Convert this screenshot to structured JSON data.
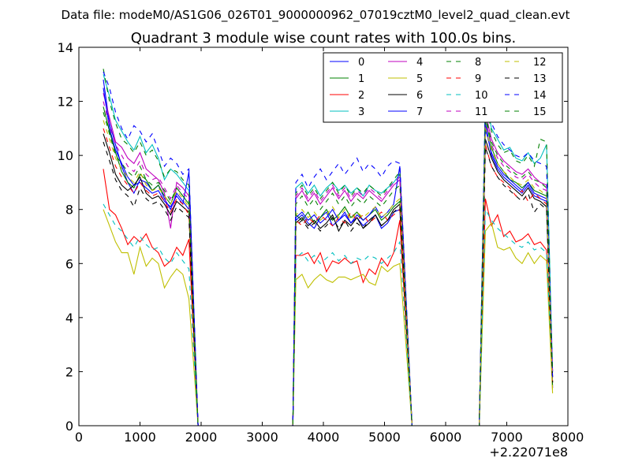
{
  "chart_data": {
    "type": "line",
    "suptitle": "Data file: modeM0/AS1G06_026T01_9000000962_07019cztM0_level2_quad_clean.evt",
    "title": "Quadrant 3 module wise count rates with 100.0s bins.",
    "xlabel": "",
    "ylabel": "",
    "xlim": [
      0,
      8000
    ],
    "ylim": [
      0,
      14
    ],
    "x_offset_label": "+2.22071e8",
    "x_ticks": [
      0,
      1000,
      2000,
      3000,
      4000,
      5000,
      6000,
      7000,
      8000
    ],
    "x_tick_labels": [
      "0",
      "1000",
      "2000",
      "3000",
      "4000",
      "5000",
      "6000",
      "7000",
      "8000"
    ],
    "y_ticks": [
      0,
      2,
      4,
      6,
      8,
      10,
      12,
      14
    ],
    "y_tick_labels": [
      "0",
      "2",
      "4",
      "6",
      "8",
      "10",
      "12",
      "14"
    ],
    "legend_position": "top-right",
    "legend_columns": 4,
    "grid": false,
    "segments": [
      {
        "start": 400,
        "end": 1800,
        "step": 100,
        "drop_end": 1950
      },
      {
        "start": 3550,
        "end": 5350,
        "step": 100,
        "drop_end": 5450
      },
      {
        "start": 6650,
        "end": 7650,
        "step": 100,
        "drop_end": 7750
      }
    ],
    "zero_gaps": [
      [
        1950,
        3500
      ],
      [
        5450,
        6550
      ]
    ],
    "gap_segment_starts": [
      3500,
      6550
    ],
    "series": [
      {
        "name": "0",
        "color": "#0000ff",
        "dash": "solid",
        "seg1": [
          12.8,
          11.2,
          10.4,
          9.6,
          9.0,
          8.6,
          9.1,
          9.0,
          8.7,
          8.9,
          8.4,
          8.0,
          8.6,
          8.3,
          8.0
        ],
        "seg2": [
          7.6,
          7.8,
          7.5,
          7.3,
          7.7,
          7.9,
          7.4,
          7.6,
          7.8,
          7.5,
          7.7,
          7.4,
          7.6,
          7.8,
          7.3,
          7.5,
          7.9,
          8.0
        ],
        "seg3": [
          11.2,
          10.0,
          9.5,
          9.2,
          9.0,
          8.8,
          8.6,
          8.9,
          8.5,
          8.4,
          8.3
        ]
      },
      {
        "name": "1",
        "color": "#008000",
        "dash": "solid",
        "seg1": [
          11.8,
          10.9,
          10.1,
          9.4,
          9.0,
          8.8,
          9.3,
          9.1,
          8.7,
          8.9,
          8.5,
          8.2,
          8.8,
          8.5,
          8.2
        ],
        "seg2": [
          7.8,
          7.6,
          7.9,
          7.5,
          7.7,
          8.0,
          7.6,
          7.8,
          8.1,
          7.7,
          7.9,
          7.6,
          7.8,
          8.0,
          7.6,
          7.8,
          8.1,
          8.3
        ],
        "seg3": [
          11.4,
          10.3,
          9.7,
          9.4,
          9.1,
          9.0,
          8.8,
          9.0,
          8.7,
          8.6,
          8.5
        ]
      },
      {
        "name": "2",
        "color": "#ff0000",
        "dash": "solid",
        "seg1": [
          9.5,
          8.0,
          7.8,
          7.3,
          6.7,
          7.0,
          6.8,
          7.1,
          6.6,
          6.4,
          5.9,
          6.1,
          6.6,
          6.3,
          6.9
        ],
        "seg2": [
          6.3,
          6.3,
          6.4,
          6.0,
          6.4,
          5.7,
          6.1,
          6.0,
          6.2,
          6.0,
          6.1,
          5.3,
          5.8,
          5.6,
          6.2,
          5.9,
          6.4,
          7.6
        ],
        "seg3": [
          8.4,
          7.4,
          7.8,
          7.0,
          7.2,
          6.8,
          6.9,
          7.1,
          6.7,
          6.8,
          6.5
        ]
      },
      {
        "name": "3",
        "color": "#00bfbf",
        "dash": "solid",
        "seg1": [
          13.0,
          12.2,
          11.3,
          10.9,
          10.5,
          10.2,
          10.7,
          10.1,
          10.4,
          9.9,
          9.1,
          9.5,
          9.3,
          9.0,
          8.7
        ],
        "seg2": [
          8.8,
          9.0,
          8.6,
          8.9,
          8.5,
          8.8,
          9.0,
          8.7,
          8.9,
          8.6,
          8.8,
          8.5,
          8.9,
          8.7,
          8.6,
          8.8,
          9.0,
          9.3
        ],
        "seg3": [
          12.2,
          11.0,
          10.6,
          10.2,
          10.3,
          9.9,
          9.8,
          10.1,
          9.7,
          9.9,
          10.4
        ]
      },
      {
        "name": "4",
        "color": "#bf00bf",
        "dash": "solid",
        "seg1": [
          12.3,
          11.4,
          10.5,
          10.3,
          9.9,
          9.7,
          10.1,
          9.5,
          9.3,
          9.1,
          8.6,
          7.3,
          9.0,
          8.8,
          8.5
        ],
        "seg2": [
          8.4,
          8.7,
          8.3,
          8.6,
          8.2,
          8.5,
          8.8,
          8.4,
          8.7,
          8.3,
          8.6,
          8.4,
          8.7,
          8.5,
          8.3,
          8.6,
          8.9,
          9.1
        ],
        "seg3": [
          11.6,
          10.6,
          10.1,
          9.8,
          9.6,
          9.4,
          9.3,
          9.5,
          9.2,
          9.0,
          8.9
        ]
      },
      {
        "name": "5",
        "color": "#bfbf00",
        "dash": "solid",
        "seg1": [
          8.0,
          7.4,
          6.8,
          6.4,
          6.4,
          5.6,
          6.6,
          5.9,
          6.2,
          6.0,
          5.1,
          5.5,
          5.8,
          5.6,
          4.7
        ],
        "seg2": [
          5.4,
          5.6,
          5.1,
          5.4,
          5.6,
          5.4,
          5.3,
          5.5,
          5.5,
          5.4,
          5.5,
          5.6,
          5.3,
          5.2,
          5.9,
          5.7,
          5.9,
          6.0
        ],
        "seg3": [
          7.2,
          7.5,
          6.6,
          6.5,
          6.6,
          6.2,
          6.0,
          6.4,
          6.0,
          6.3,
          6.1
        ]
      },
      {
        "name": "6",
        "color": "#000000",
        "dash": "solid",
        "seg1": [
          10.8,
          10.1,
          9.3,
          8.9,
          8.7,
          8.9,
          9.2,
          8.6,
          8.4,
          8.5,
          8.2,
          7.8,
          8.3,
          8.1,
          7.9
        ],
        "seg2": [
          7.5,
          7.7,
          7.4,
          7.6,
          7.3,
          7.5,
          7.8,
          7.2,
          7.6,
          7.4,
          7.7,
          7.3,
          7.5,
          7.8,
          7.4,
          7.6,
          8.0,
          8.2
        ],
        "seg3": [
          10.6,
          9.9,
          9.4,
          9.1,
          8.9,
          8.7,
          8.5,
          8.8,
          8.4,
          8.3,
          8.1
        ]
      },
      {
        "name": "7",
        "color": "#0000ff",
        "dash": "solid",
        "seg1": [
          12.5,
          11.0,
          10.2,
          9.7,
          9.2,
          8.9,
          9.0,
          8.8,
          8.6,
          8.7,
          8.3,
          8.1,
          8.5,
          8.2,
          9.4
        ],
        "seg2": [
          7.7,
          7.9,
          7.6,
          7.8,
          7.5,
          7.7,
          8.0,
          7.6,
          7.9,
          7.5,
          7.8,
          7.6,
          7.8,
          8.1,
          7.7,
          7.9,
          8.2,
          9.6
        ],
        "seg3": [
          11.0,
          10.1,
          9.6,
          9.3,
          9.1,
          8.9,
          8.7,
          9.0,
          8.6,
          8.5,
          8.4
        ]
      },
      {
        "name": "8",
        "color": "#008000",
        "dash": "dashed",
        "seg1": [
          13.2,
          12.0,
          11.2,
          10.6,
          10.4,
          10.1,
          10.5,
          10.0,
          10.2,
          9.8,
          9.2,
          9.5,
          9.4,
          9.1,
          8.9
        ],
        "seg2": [
          8.6,
          8.9,
          8.5,
          8.8,
          8.4,
          8.7,
          9.0,
          8.6,
          8.9,
          8.5,
          8.8,
          8.6,
          8.9,
          8.7,
          8.5,
          8.8,
          9.1,
          9.4
        ],
        "seg3": [
          12.0,
          10.9,
          10.4,
          10.1,
          10.2,
          9.8,
          9.7,
          10.0,
          9.6,
          10.6,
          10.5
        ]
      },
      {
        "name": "9",
        "color": "#ff0000",
        "dash": "dashed",
        "seg1": [
          11.0,
          10.3,
          9.6,
          9.2,
          8.9,
          8.6,
          9.0,
          8.7,
          8.5,
          8.6,
          8.3,
          7.9,
          8.4,
          8.2,
          7.8
        ],
        "seg2": [
          7.6,
          7.4,
          7.7,
          7.5,
          7.8,
          7.6,
          7.4,
          7.7,
          7.5,
          7.9,
          7.6,
          7.8,
          7.5,
          7.7,
          7.9,
          7.6,
          7.8,
          8.0
        ],
        "seg3": [
          10.4,
          9.6,
          9.2,
          9.0,
          8.8,
          8.5,
          8.7,
          8.3,
          8.6,
          8.4,
          8.2
        ]
      },
      {
        "name": "10",
        "color": "#00bfbf",
        "dash": "dashed",
        "seg1": [
          8.2,
          7.8,
          7.4,
          7.2,
          6.9,
          6.6,
          7.0,
          6.7,
          6.5,
          6.6,
          6.2,
          6.0,
          6.4,
          6.1,
          5.8
        ],
        "seg2": [
          6.2,
          6.4,
          6.1,
          6.3,
          6.0,
          6.2,
          6.4,
          6.1,
          6.3,
          6.0,
          6.2,
          6.1,
          6.3,
          6.2,
          6.0,
          6.2,
          6.4,
          6.8
        ],
        "seg3": [
          8.0,
          7.6,
          7.3,
          7.1,
          6.9,
          6.7,
          6.6,
          6.8,
          6.5,
          6.6,
          6.4
        ]
      },
      {
        "name": "11",
        "color": "#bf00bf",
        "dash": "dashed",
        "seg1": [
          12.0,
          11.1,
          10.4,
          10.0,
          9.6,
          9.4,
          9.8,
          9.3,
          9.1,
          9.2,
          8.8,
          8.4,
          8.9,
          8.6,
          8.4
        ],
        "seg2": [
          8.5,
          8.8,
          8.4,
          8.7,
          8.3,
          8.6,
          8.9,
          8.5,
          8.8,
          8.4,
          8.7,
          8.5,
          8.8,
          8.6,
          8.4,
          8.7,
          9.0,
          9.2
        ],
        "seg3": [
          11.3,
          10.4,
          9.9,
          9.6,
          9.4,
          9.2,
          9.1,
          9.3,
          9.0,
          8.8,
          8.7
        ]
      },
      {
        "name": "12",
        "color": "#bfbf00",
        "dash": "dashed",
        "seg1": [
          11.3,
          10.6,
          9.9,
          9.5,
          9.2,
          9.0,
          9.4,
          8.9,
          8.7,
          8.8,
          8.5,
          8.2,
          8.7,
          8.4,
          8.1
        ],
        "seg2": [
          7.8,
          8.0,
          7.7,
          7.9,
          7.6,
          7.8,
          8.1,
          7.7,
          8.0,
          7.6,
          7.9,
          7.7,
          7.9,
          8.1,
          7.7,
          7.9,
          8.2,
          8.4
        ],
        "seg3": [
          11.0,
          10.2,
          9.7,
          9.4,
          9.2,
          9.0,
          8.9,
          9.1,
          8.8,
          8.7,
          8.5
        ]
      },
      {
        "name": "13",
        "color": "#000000",
        "dash": "dashed",
        "seg1": [
          10.5,
          9.8,
          9.1,
          8.7,
          8.5,
          8.1,
          8.8,
          8.4,
          8.2,
          8.3,
          8.0,
          7.6,
          8.1,
          7.9,
          7.7
        ],
        "seg2": [
          7.4,
          7.6,
          7.3,
          7.5,
          7.2,
          7.4,
          7.7,
          7.3,
          7.6,
          7.2,
          7.5,
          7.3,
          7.6,
          7.8,
          7.4,
          7.6,
          7.9,
          8.1
        ],
        "seg3": [
          10.3,
          9.6,
          9.2,
          8.9,
          8.7,
          8.5,
          8.3,
          8.6,
          7.9,
          8.2,
          8.0
        ]
      },
      {
        "name": "14",
        "color": "#0000ff",
        "dash": "dashed",
        "seg1": [
          13.1,
          12.5,
          11.6,
          11.0,
          10.6,
          11.1,
          10.9,
          10.5,
          10.8,
          10.2,
          9.6,
          9.9,
          9.7,
          9.3,
          9.5
        ],
        "seg2": [
          9.0,
          9.3,
          8.8,
          9.2,
          9.5,
          9.1,
          9.4,
          9.7,
          9.3,
          9.6,
          9.9,
          9.4,
          9.7,
          9.5,
          9.2,
          9.6,
          9.8,
          9.7
        ],
        "seg3": [
          12.3,
          11.2,
          10.7,
          10.4,
          10.2,
          10.0,
          9.9,
          10.1,
          9.8,
          9.7,
          9.6
        ]
      },
      {
        "name": "15",
        "color": "#008000",
        "dash": "dashed",
        "seg1": [
          11.6,
          10.8,
          10.0,
          9.7,
          9.4,
          9.2,
          9.6,
          9.1,
          8.9,
          9.0,
          8.7,
          8.3,
          8.8,
          8.5,
          8.3
        ],
        "seg2": [
          8.2,
          8.5,
          8.1,
          8.4,
          8.0,
          8.3,
          8.6,
          8.2,
          8.5,
          8.1,
          8.4,
          8.2,
          8.5,
          8.3,
          8.1,
          8.4,
          8.7,
          8.9
        ],
        "seg3": [
          11.5,
          10.5,
          10.0,
          9.7,
          9.5,
          9.3,
          9.2,
          9.4,
          9.1,
          9.0,
          8.8
        ]
      }
    ]
  }
}
